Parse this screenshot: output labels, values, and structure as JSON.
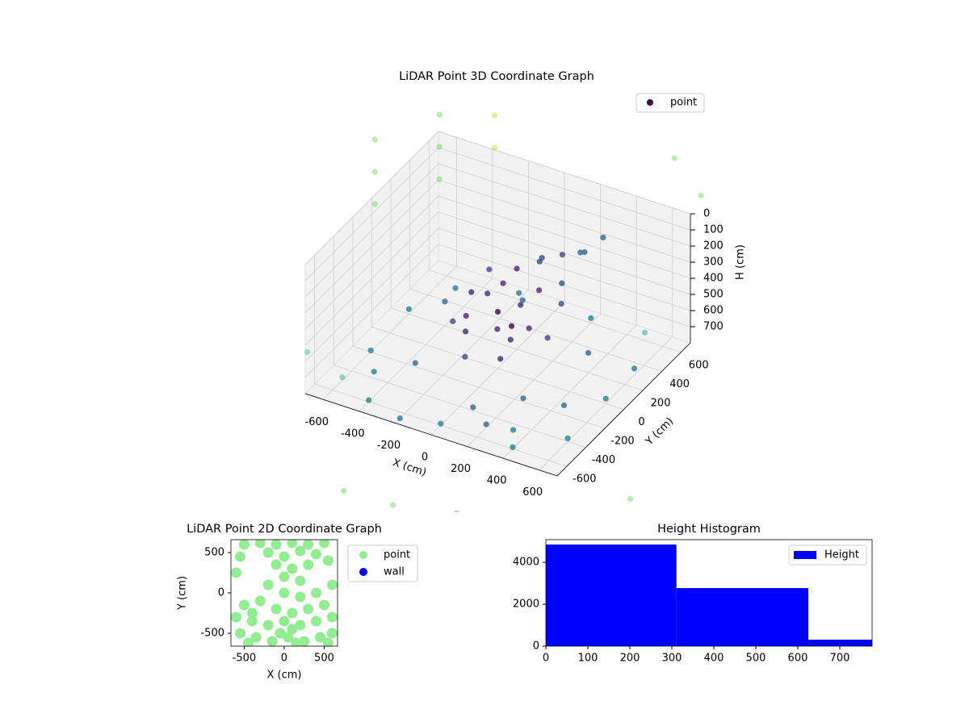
{
  "chart_data": [
    {
      "type": "scatter3d",
      "title": "LiDAR Point 3D Coordinate Graph",
      "xlabel": "X (cm)",
      "ylabel": "Y (cm)",
      "zlabel": "H (cm)",
      "xlim": [
        -700,
        700
      ],
      "ylim": [
        -700,
        700
      ],
      "zlim": [
        0,
        800
      ],
      "z_inverted": true,
      "colormap": "viridis",
      "legend": "upper right",
      "xticks": [
        -600,
        -400,
        -200,
        0,
        200,
        400,
        600
      ],
      "yticks": [
        -600,
        -400,
        -200,
        0,
        200,
        400,
        600
      ],
      "zticks": [
        0,
        100,
        200,
        300,
        400,
        500,
        600,
        700
      ],
      "series": [
        {
          "name": "point",
          "color": "#440154",
          "x": [
            0,
            100,
            -100,
            50,
            150,
            -150,
            200,
            0,
            -50,
            100,
            250,
            300,
            -200,
            50,
            -100,
            150,
            300,
            350,
            400,
            200,
            -250,
            250,
            -50,
            120,
            -180,
            60,
            -600,
            -400,
            -200,
            0,
            200,
            400,
            600,
            600,
            600,
            500,
            200,
            -200,
            -500,
            -600,
            -600,
            -300,
            300,
            -400,
            450,
            -450,
            100,
            350,
            -100,
            500,
            -1000,
            -1000,
            -1000,
            -800,
            -800,
            -800,
            -600,
            -600,
            900,
            1000,
            -1100,
            0,
            800,
            600,
            400,
            -900,
            300,
            -300,
            700,
            1100
          ],
          "y": [
            0,
            50,
            80,
            -100,
            150,
            -50,
            -50,
            200,
            150,
            250,
            200,
            100,
            100,
            50,
            -150,
            -150,
            300,
            250,
            350,
            300,
            0,
            50,
            -250,
            -200,
            250,
            350,
            -500,
            -600,
            -650,
            -600,
            -500,
            -600,
            -400,
            0,
            300,
            600,
            600,
            600,
            500,
            200,
            -200,
            -300,
            -300,
            200,
            100,
            -450,
            -450,
            -500,
            450,
            -250,
            600,
            600,
            600,
            900,
            900,
            900,
            1100,
            1100,
            -900,
            -500,
            -800,
            -1100,
            800,
            1000,
            1100,
            -300,
            -1000,
            -1050,
            -800,
            200
          ],
          "z": [
            450,
            400,
            420,
            480,
            350,
            500,
            450,
            300,
            380,
            250,
            300,
            350,
            460,
            550,
            520,
            480,
            150,
            100,
            50,
            200,
            600,
            550,
            600,
            580,
            400,
            300,
            780,
            790,
            800,
            790,
            780,
            790,
            780,
            770,
            760,
            750,
            770,
            760,
            780,
            770,
            790,
            700,
            700,
            650,
            600,
            720,
            740,
            760,
            680,
            700,
            100,
            300,
            500,
            50,
            250,
            450,
            100,
            300,
            900,
            950,
            950,
            1000,
            0,
            100,
            0,
            850,
            1000,
            1050,
            1000,
            900
          ]
        }
      ]
    },
    {
      "type": "scatter",
      "title": "LiDAR Point 2D Coordinate Graph",
      "xlabel": "X (cm)",
      "ylabel": "Y (cm)",
      "xlim": [
        -666,
        667
      ],
      "ylim": [
        -660,
        660
      ],
      "xticks": [
        -500,
        0,
        500
      ],
      "yticks": [
        -500,
        0,
        500
      ],
      "legend": "outside right",
      "series": [
        {
          "name": "point",
          "color": "#90ee90",
          "x": [
            -500,
            -300,
            -100,
            100,
            300,
            500,
            -550,
            -200,
            0,
            200,
            400,
            550,
            -100,
            100,
            300,
            -600,
            0,
            200,
            -200,
            0,
            200,
            -300,
            -500,
            -100,
            100,
            300,
            500,
            -600,
            -400,
            -200,
            0,
            200,
            400,
            600,
            -550,
            -350,
            -150,
            50,
            250,
            450,
            600,
            -450,
            150,
            550,
            400,
            600,
            -400,
            100,
            -50
          ],
          "y": [
            600,
            620,
            600,
            620,
            600,
            620,
            450,
            500,
            450,
            520,
            480,
            400,
            350,
            300,
            350,
            250,
            200,
            150,
            100,
            0,
            -50,
            -100,
            -150,
            -200,
            -250,
            -200,
            -150,
            -300,
            -350,
            -400,
            -350,
            -400,
            -350,
            -300,
            -500,
            -550,
            -600,
            -550,
            -600,
            -550,
            -500,
            -620,
            -620,
            -620,
            0,
            100,
            -250,
            -450,
            -500
          ]
        },
        {
          "name": "wall",
          "color": "#0000ff",
          "x": [],
          "y": []
        }
      ]
    },
    {
      "type": "histogram",
      "title": "Height Histogram",
      "xlim": [
        0,
        777
      ],
      "ylim": [
        0,
        5080
      ],
      "xticks": [
        0,
        100,
        200,
        300,
        400,
        500,
        600,
        700
      ],
      "yticks": [
        0,
        2000,
        4000
      ],
      "legend": "upper right",
      "bins": [
        0,
        311,
        625,
        777
      ],
      "series": [
        {
          "name": "Height",
          "color": "#0000ff",
          "values": [
            4846,
            2770,
            310
          ]
        }
      ]
    }
  ]
}
